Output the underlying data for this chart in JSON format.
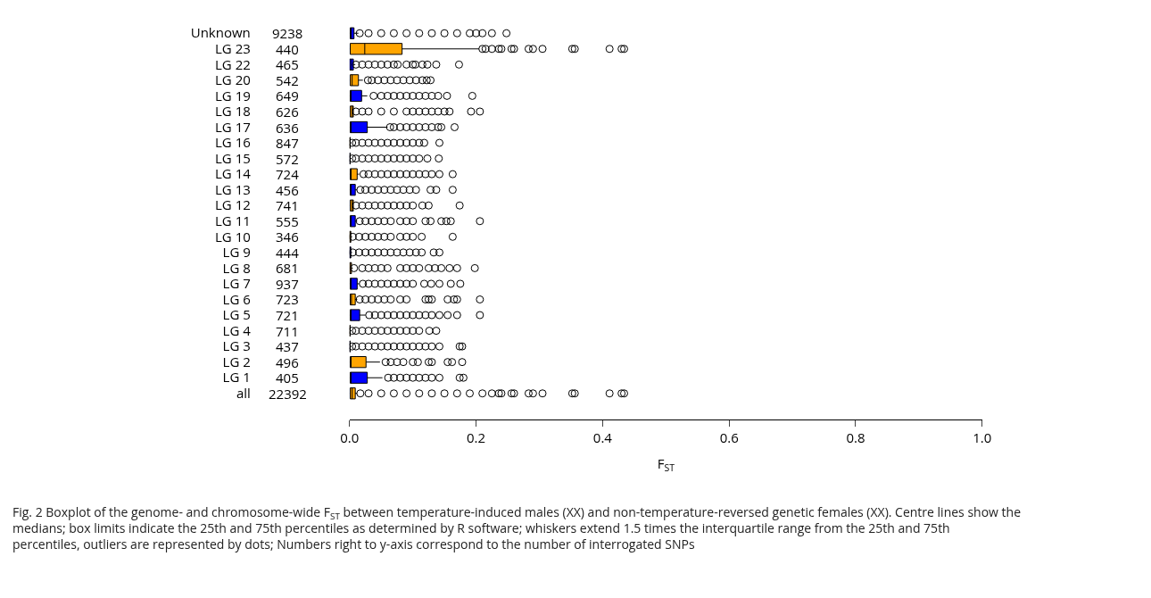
{
  "chart_data": {
    "type": "box",
    "orientation": "horizontal",
    "categories": [
      "Unknown",
      "LG 23",
      "LG 22",
      "LG 20",
      "LG 19",
      "LG 18",
      "LG 17",
      "LG 16",
      "LG 15",
      "LG 14",
      "LG 13",
      "LG 12",
      "LG 11",
      "LG 10",
      "LG 9",
      "LG 8",
      "LG 7",
      "LG 6",
      "LG 5",
      "LG 4",
      "LG 3",
      "LG 2",
      "LG 1",
      "all"
    ],
    "y2_categories": [
      "9238",
      "440",
      "465",
      "542",
      "649",
      "626",
      "636",
      "847",
      "572",
      "724",
      "456",
      "741",
      "555",
      "346",
      "444",
      "681",
      "937",
      "723",
      "721",
      "711",
      "437",
      "496",
      "405",
      "22392"
    ],
    "colors": [
      "#0000ff",
      "#ffa500",
      "#0000ff",
      "#ffa500",
      "#0000ff",
      "#ffa500",
      "#0000ff",
      "#ffa500",
      "#0000ff",
      "#ffa500",
      "#0000ff",
      "#ffa500",
      "#0000ff",
      "#ffa500",
      "#0000ff",
      "#ffa500",
      "#0000ff",
      "#ffa500",
      "#0000ff",
      "#ffa500",
      "#0000ff",
      "#ffa500",
      "#0000ff",
      "#ffa500"
    ],
    "boxes": [
      {
        "low": 0,
        "q1": 0.001,
        "median": 0.002,
        "q3": 0.007,
        "high": 0.014,
        "outliers": [
          0.016,
          0.03,
          0.05,
          0.07,
          0.09,
          0.11,
          0.13,
          0.15,
          0.17,
          0.19,
          0.2,
          0.21,
          0.225,
          0.248
        ]
      },
      {
        "low": 0,
        "q1": 0.001,
        "median": 0.024,
        "q3": 0.083,
        "high": 0.205,
        "outliers": [
          0.21,
          0.215,
          0.225,
          0.236,
          0.24,
          0.256,
          0.26,
          0.283,
          0.29,
          0.305,
          0.352,
          0.356,
          0.411,
          0.43,
          0.434
        ]
      },
      {
        "low": 0,
        "q1": 0,
        "median": 0.002,
        "q3": 0.006,
        "high": 0.009,
        "outliers": [
          0.01,
          0.02,
          0.03,
          0.04,
          0.05,
          0.06,
          0.07,
          0.076,
          0.09,
          0.1,
          0.104,
          0.115,
          0.123,
          0.137,
          0.173
        ]
      },
      {
        "low": 0,
        "q1": 0.001,
        "median": 0.004,
        "q3": 0.014,
        "high": 0.021,
        "outliers": [
          0.029,
          0.035,
          0.045,
          0.055,
          0.065,
          0.075,
          0.085,
          0.095,
          0.105,
          0.115,
          0.122,
          0.128
        ]
      },
      {
        "low": 0,
        "q1": 0.001,
        "median": 0.002,
        "q3": 0.019,
        "high": 0.028,
        "outliers": [
          0.038,
          0.05,
          0.06,
          0.07,
          0.08,
          0.09,
          0.1,
          0.11,
          0.12,
          0.13,
          0.14,
          0.154,
          0.194
        ]
      },
      {
        "low": 0,
        "q1": 0.001,
        "median": 0.004,
        "q3": 0.006,
        "high": 0.006,
        "outliers": [
          0.01,
          0.02,
          0.03,
          0.05,
          0.07,
          0.09,
          0.1,
          0.11,
          0.12,
          0.13,
          0.14,
          0.15,
          0.158,
          0.192,
          0.206
        ]
      },
      {
        "low": 0,
        "q1": 0.001,
        "median": 0.002,
        "q3": 0.028,
        "high": 0.06,
        "outliers": [
          0.064,
          0.07,
          0.08,
          0.09,
          0.1,
          0.11,
          0.12,
          0.13,
          0.14,
          0.145,
          0.166
        ]
      },
      {
        "low": 0,
        "q1": 0,
        "median": 0,
        "q3": 0.001,
        "high": 0.003,
        "outliers": [
          0.004,
          0.01,
          0.02,
          0.03,
          0.04,
          0.05,
          0.06,
          0.07,
          0.08,
          0.09,
          0.1,
          0.11,
          0.118,
          0.142
        ]
      },
      {
        "low": 0,
        "q1": 0,
        "median": 0,
        "q3": 0.001,
        "high": 0.003,
        "outliers": [
          0.004,
          0.01,
          0.02,
          0.03,
          0.04,
          0.05,
          0.06,
          0.07,
          0.08,
          0.09,
          0.1,
          0.11,
          0.123,
          0.141
        ]
      },
      {
        "low": 0,
        "q1": 0.001,
        "median": 0.002,
        "q3": 0.012,
        "high": 0.015,
        "outliers": [
          0.022,
          0.03,
          0.04,
          0.05,
          0.06,
          0.07,
          0.08,
          0.09,
          0.1,
          0.11,
          0.12,
          0.13,
          0.142,
          0.163
        ]
      },
      {
        "low": 0,
        "q1": 0.001,
        "median": 0.002,
        "q3": 0.009,
        "high": 0.012,
        "outliers": [
          0.017,
          0.025,
          0.035,
          0.045,
          0.055,
          0.065,
          0.075,
          0.085,
          0.095,
          0.105,
          0.128,
          0.137,
          0.163
        ]
      },
      {
        "low": 0,
        "q1": 0.001,
        "median": 0.004,
        "q3": 0.006,
        "high": 0.006,
        "outliers": [
          0.01,
          0.02,
          0.03,
          0.04,
          0.05,
          0.06,
          0.07,
          0.08,
          0.09,
          0.1,
          0.115,
          0.125,
          0.174
        ]
      },
      {
        "low": 0,
        "q1": 0.001,
        "median": 0.002,
        "q3": 0.009,
        "high": 0.012,
        "outliers": [
          0.016,
          0.025,
          0.035,
          0.045,
          0.055,
          0.065,
          0.08,
          0.09,
          0.1,
          0.12,
          0.128,
          0.145,
          0.153,
          0.16,
          0.206
        ]
      },
      {
        "low": 0,
        "q1": 0,
        "median": 0,
        "q3": 0.002,
        "high": 0.004,
        "outliers": [
          0.005,
          0.015,
          0.025,
          0.035,
          0.045,
          0.055,
          0.065,
          0.08,
          0.09,
          0.1,
          0.114,
          0.163
        ]
      },
      {
        "low": 0,
        "q1": 0,
        "median": 0,
        "q3": 0.002,
        "high": 0.004,
        "outliers": [
          0.005,
          0.015,
          0.025,
          0.035,
          0.045,
          0.055,
          0.065,
          0.075,
          0.085,
          0.095,
          0.105,
          0.114,
          0.133,
          0.142
        ]
      },
      {
        "low": 0,
        "q1": 0,
        "median": 0.001,
        "q3": 0.003,
        "high": 0.005,
        "outliers": [
          0.007,
          0.02,
          0.03,
          0.04,
          0.05,
          0.06,
          0.08,
          0.09,
          0.1,
          0.11,
          0.125,
          0.135,
          0.145,
          0.158,
          0.17,
          0.198
        ]
      },
      {
        "low": 0,
        "q1": 0.001,
        "median": 0.002,
        "q3": 0.012,
        "high": 0.015,
        "outliers": [
          0.021,
          0.03,
          0.04,
          0.05,
          0.06,
          0.07,
          0.08,
          0.09,
          0.1,
          0.118,
          0.129,
          0.142,
          0.16,
          0.175
        ]
      },
      {
        "low": 0,
        "q1": 0.001,
        "median": 0.003,
        "q3": 0.009,
        "high": 0.012,
        "outliers": [
          0.016,
          0.025,
          0.035,
          0.045,
          0.055,
          0.065,
          0.08,
          0.09,
          0.12,
          0.125,
          0.13,
          0.155,
          0.165,
          0.17,
          0.206
        ]
      },
      {
        "low": 0,
        "q1": 0.001,
        "median": 0.002,
        "q3": 0.016,
        "high": 0.025,
        "outliers": [
          0.031,
          0.04,
          0.05,
          0.06,
          0.07,
          0.08,
          0.09,
          0.1,
          0.11,
          0.12,
          0.13,
          0.142,
          0.155,
          0.17,
          0.206
        ]
      },
      {
        "low": 0,
        "q1": 0,
        "median": 0,
        "q3": 0.001,
        "high": 0.003,
        "outliers": [
          0.004,
          0.01,
          0.02,
          0.03,
          0.04,
          0.05,
          0.06,
          0.07,
          0.08,
          0.09,
          0.1,
          0.11,
          0.126,
          0.137
        ]
      },
      {
        "low": 0,
        "q1": 0,
        "median": 0,
        "q3": 0.001,
        "high": 0.003,
        "outliers": [
          0.004,
          0.01,
          0.02,
          0.03,
          0.04,
          0.05,
          0.06,
          0.07,
          0.08,
          0.09,
          0.1,
          0.11,
          0.12,
          0.13,
          0.142,
          0.174,
          0.178
        ]
      },
      {
        "low": 0,
        "q1": 0.001,
        "median": 0.002,
        "q3": 0.026,
        "high": 0.048,
        "outliers": [
          0.057,
          0.065,
          0.075,
          0.085,
          0.1,
          0.108,
          0.125,
          0.13,
          0.155,
          0.162,
          0.178
        ]
      },
      {
        "low": 0,
        "q1": 0.001,
        "median": 0.002,
        "q3": 0.028,
        "high": 0.052,
        "outliers": [
          0.061,
          0.07,
          0.08,
          0.09,
          0.1,
          0.11,
          0.12,
          0.13,
          0.142,
          0.174,
          0.18
        ]
      },
      {
        "low": 0,
        "q1": 0.001,
        "median": 0.004,
        "q3": 0.009,
        "high": 0.012,
        "outliers": [
          0.017,
          0.03,
          0.05,
          0.07,
          0.09,
          0.11,
          0.13,
          0.15,
          0.17,
          0.19,
          0.21,
          0.225,
          0.236,
          0.24,
          0.256,
          0.26,
          0.283,
          0.29,
          0.305,
          0.352,
          0.356,
          0.411,
          0.43,
          0.434
        ]
      }
    ],
    "xlim": [
      0,
      1
    ],
    "xticks": [
      {
        "value": 0,
        "label": "0.0"
      },
      {
        "value": 0.2,
        "label": "0.2"
      },
      {
        "value": 0.4,
        "label": "0.4"
      },
      {
        "value": 0.6,
        "label": "0.6"
      },
      {
        "value": 0.8,
        "label": "0.8"
      },
      {
        "value": 1,
        "label": "1.0"
      }
    ],
    "xlabel": "F$_{ST}$",
    "marker": "circle",
    "annotations": [
      "Fig. 2 Boxplot of the genome- and chromosome-wide F$_{ST}$ between temperature-induced males (XX) and non-temperature-reversed genetic females (XX). Centre lines show the medians; box limits indicate the 25th and 75th percentiles as determined by R software; whiskers extend 1.5 times the interquartile range from the 25th and 75th percentiles, outliers are represented by dots; Numbers right to y-axis correspond to the number of interrogated SNPs"
    ]
  }
}
